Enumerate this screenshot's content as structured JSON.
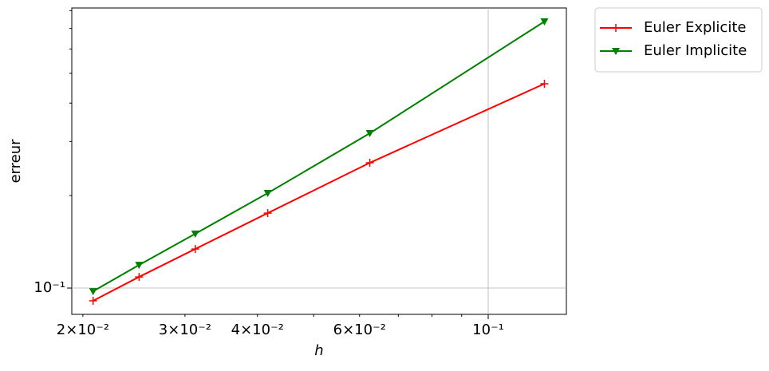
{
  "chart_data": {
    "type": "line",
    "xlabel": "h",
    "ylabel": "erreur",
    "x": [
      0.02083,
      0.025,
      0.03125,
      0.04167,
      0.0625,
      0.125
    ],
    "series": [
      {
        "name": "Euler Explicite",
        "color": "#ff0000",
        "marker": "plus",
        "values": [
          0.0909,
          0.1087,
          0.134,
          0.1754,
          0.2557,
          0.4623
        ]
      },
      {
        "name": "Euler Implicite",
        "color": "#008000",
        "marker": "triangle-down",
        "values": [
          0.0976,
          0.1189,
          0.1502,
          0.2037,
          0.3191,
          0.737
        ]
      }
    ],
    "xscale": "log",
    "yscale": "log",
    "xlim": [
      0.01914,
      0.1364
    ],
    "ylim": [
      0.0821,
      0.816
    ],
    "xticks": [
      {
        "value": 0.1,
        "label": "10⁻¹"
      }
    ],
    "xminorticks": [
      {
        "value": 0.02,
        "label": "2×10⁻²"
      },
      {
        "value": 0.03,
        "label": "3×10⁻²"
      },
      {
        "value": 0.04,
        "label": "4×10⁻²"
      },
      {
        "value": 0.05,
        "label": null
      },
      {
        "value": 0.06,
        "label": "6×10⁻²"
      },
      {
        "value": 0.07,
        "label": null
      },
      {
        "value": 0.08,
        "label": null
      },
      {
        "value": 0.09,
        "label": null
      }
    ],
    "yticks": [
      {
        "value": 0.1,
        "label": "10⁻¹"
      }
    ],
    "yminorticks": [
      {
        "value": 0.2,
        "label": null
      },
      {
        "value": 0.3,
        "label": null
      },
      {
        "value": 0.4,
        "label": null
      },
      {
        "value": 0.5,
        "label": null
      },
      {
        "value": 0.6,
        "label": null
      },
      {
        "value": 0.7,
        "label": null
      },
      {
        "value": 0.8,
        "label": null
      }
    ],
    "grid": true,
    "legend": "outside upper right"
  }
}
